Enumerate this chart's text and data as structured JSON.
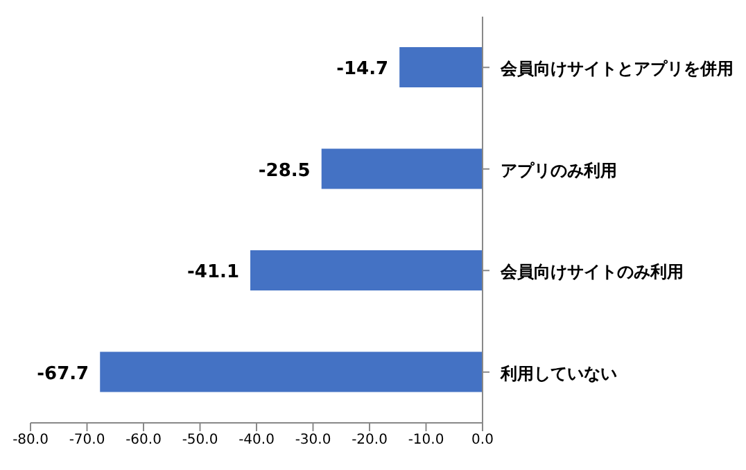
{
  "chart_data": {
    "type": "bar",
    "orientation": "horizontal",
    "categories": [
      "会員向けサイトとアプリを併用",
      "アプリのみ利用",
      "会員向けサイトのみ利用",
      "利用していない"
    ],
    "values": [
      -14.7,
      -28.5,
      -41.1,
      -67.7
    ],
    "color": "#4472c4",
    "data_labels": true,
    "xlim": [
      -80,
      0
    ],
    "xticks": [
      {
        "value": -80,
        "label": "-80.0"
      },
      {
        "value": -70,
        "label": "-70.0"
      },
      {
        "value": -60,
        "label": "-60.0"
      },
      {
        "value": -50,
        "label": "-50.0"
      },
      {
        "value": -40,
        "label": "-40.0"
      },
      {
        "value": -30,
        "label": "-30.0"
      },
      {
        "value": -20,
        "label": "-20.0"
      },
      {
        "value": -10,
        "label": "-10.0"
      },
      {
        "value": 0,
        "label": "0.0"
      }
    ],
    "grid": false,
    "legend": false
  }
}
